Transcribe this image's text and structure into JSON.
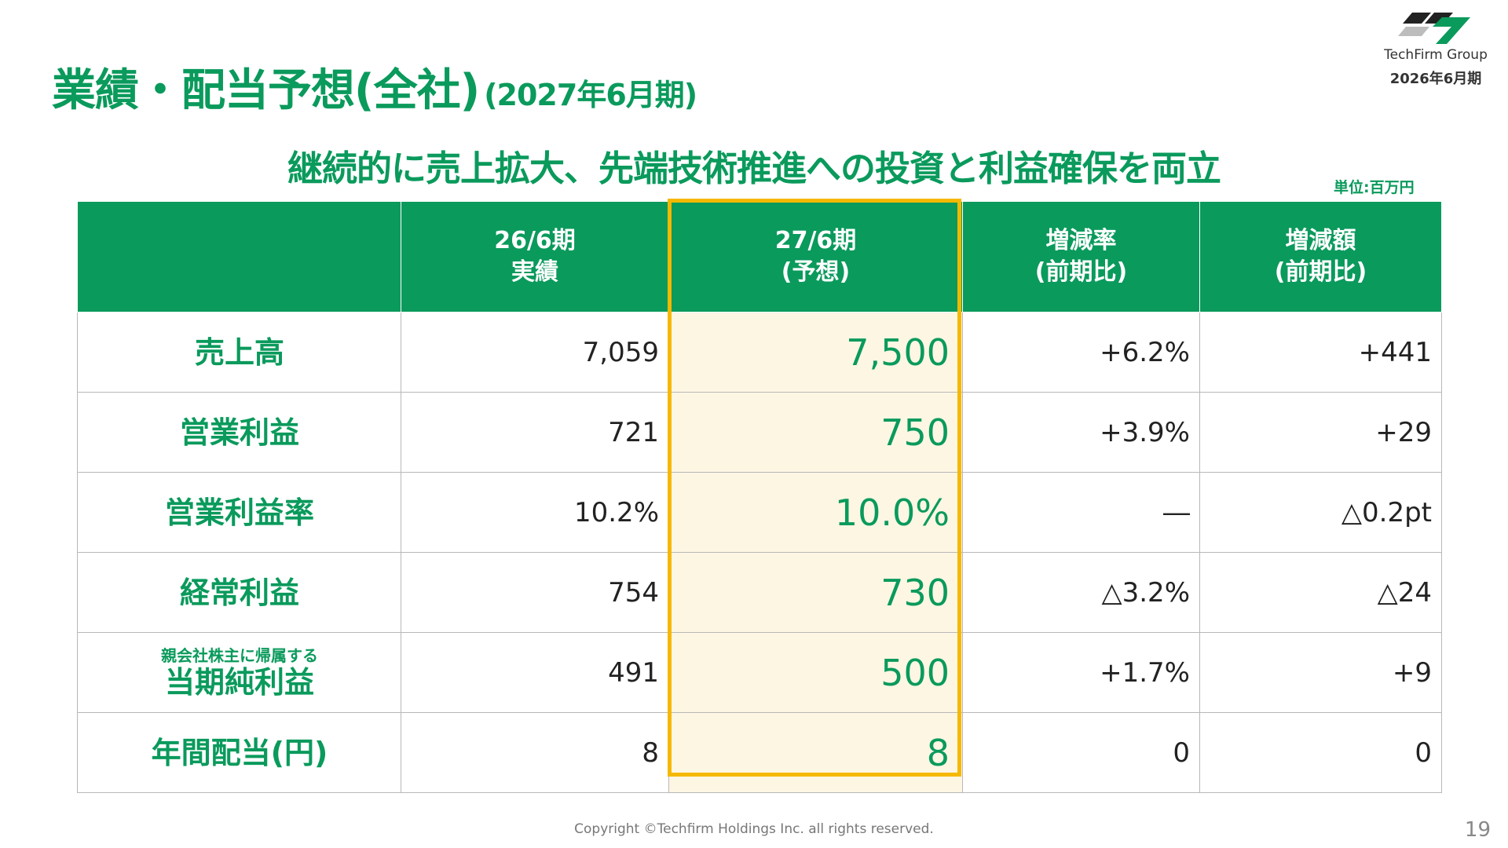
{
  "title": {
    "main": "業績・配当予想(全社)",
    "period": "(2027年6月期)"
  },
  "logo": {
    "name": "TechFirm Group",
    "fiscal_period": "2026年6月期"
  },
  "subtitle": "継続的に売上拡大、先端技術推進への投資と利益確保を両立",
  "unit": "単位:百万円",
  "table": {
    "headers": [
      {
        "line1": "",
        "line2": ""
      },
      {
        "line1": "26/6期",
        "line2": "実績"
      },
      {
        "line1": "27/6期",
        "line2": "(予想)"
      },
      {
        "line1": "増減率",
        "line2": "(前期比)"
      },
      {
        "line1": "増減額",
        "line2": "(前期比)"
      }
    ],
    "rows": [
      {
        "sub": "",
        "label": "売上高",
        "actual": "7,059",
        "forecast": "7,500",
        "rate": "+6.2%",
        "amount": "+441"
      },
      {
        "sub": "",
        "label": "営業利益",
        "actual": "721",
        "forecast": "750",
        "rate": "+3.9%",
        "amount": "+29"
      },
      {
        "sub": "",
        "label": "営業利益率",
        "actual": "10.2%",
        "forecast": "10.0%",
        "rate": "―",
        "amount": "△0.2pt"
      },
      {
        "sub": "",
        "label": "経常利益",
        "actual": "754",
        "forecast": "730",
        "rate": "△3.2%",
        "amount": "△24"
      },
      {
        "sub": "親会社株主に帰属する",
        "label": "当期純利益",
        "actual": "491",
        "forecast": "500",
        "rate": "+1.7%",
        "amount": "+9"
      },
      {
        "sub": "",
        "label": "年間配当(円)",
        "actual": "8",
        "forecast": "8",
        "rate": "0",
        "amount": "0"
      }
    ]
  },
  "footer": {
    "copyright": "Copyright ©Techfirm Holdings Inc. all rights reserved.",
    "page_number": "19"
  },
  "colors": {
    "brand_green": "#0a9a5c",
    "highlight_border": "#f5b800",
    "highlight_fill": "#fdf6e3"
  }
}
